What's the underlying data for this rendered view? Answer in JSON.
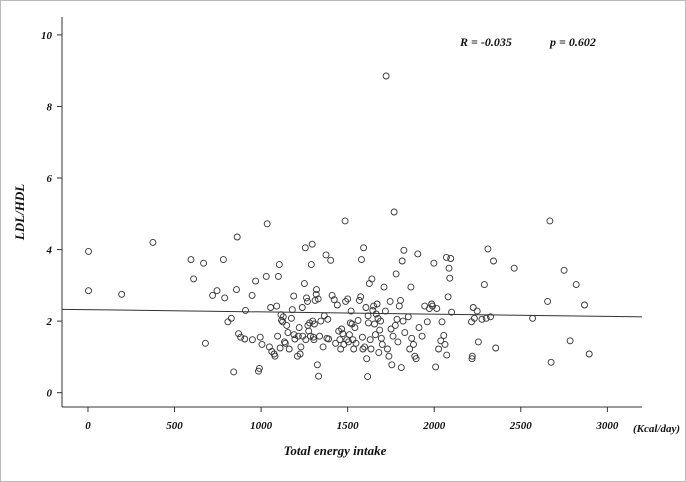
{
  "chart_data": {
    "type": "scatter",
    "xlabel": "Total energy intake",
    "ylabel": "LDL/HDL",
    "x_unit_label": "(Kcal/day)",
    "xlim": [
      -150,
      3200
    ],
    "ylim": [
      -0.4,
      10.5
    ],
    "x_ticks": [
      0,
      500,
      1000,
      1500,
      2000,
      2500,
      3000
    ],
    "y_ticks": [
      0,
      2,
      4,
      6,
      8,
      10
    ],
    "x_tick_labels": [
      "0",
      "500",
      "1000",
      "1500",
      "2000",
      "2500",
      "3000"
    ],
    "y_tick_labels": [
      "0",
      "2",
      "4",
      "6",
      "8",
      "10"
    ],
    "grid": false,
    "legend": "none",
    "annotations": {
      "r_label": "R = -0.035",
      "p_label": "p = 0.602"
    },
    "fit_line": {
      "x": [
        -150,
        3200
      ],
      "y": [
        2.33,
        2.12
      ]
    },
    "colors": {
      "points": "#333333",
      "fit_line": "#333333",
      "axes": "#333333",
      "frame": "#bbbbbb",
      "background": "#ffffff"
    },
    "points": [
      [
        3,
        3.95
      ],
      [
        3,
        2.85
      ],
      [
        195,
        2.75
      ],
      [
        375,
        4.2
      ],
      [
        595,
        3.72
      ],
      [
        610,
        3.18
      ],
      [
        668,
        3.62
      ],
      [
        678,
        1.38
      ],
      [
        720,
        2.72
      ],
      [
        745,
        2.85
      ],
      [
        782,
        3.72
      ],
      [
        790,
        2.65
      ],
      [
        808,
        1.98
      ],
      [
        828,
        2.08
      ],
      [
        842,
        0.58
      ],
      [
        858,
        2.88
      ],
      [
        862,
        4.35
      ],
      [
        870,
        1.65
      ],
      [
        882,
        1.55
      ],
      [
        905,
        1.5
      ],
      [
        910,
        2.3
      ],
      [
        948,
        2.72
      ],
      [
        950,
        1.48
      ],
      [
        968,
        3.12
      ],
      [
        985,
        0.6
      ],
      [
        990,
        0.68
      ],
      [
        995,
        1.55
      ],
      [
        1005,
        1.35
      ],
      [
        1030,
        3.25
      ],
      [
        1035,
        4.72
      ],
      [
        1048,
        1.28
      ],
      [
        1055,
        2.38
      ],
      [
        1062,
        1.15
      ],
      [
        1075,
        1.08
      ],
      [
        1080,
        1.02
      ],
      [
        1090,
        2.42
      ],
      [
        1095,
        1.58
      ],
      [
        1100,
        3.25
      ],
      [
        1105,
        3.58
      ],
      [
        1110,
        1.25
      ],
      [
        1115,
        2.18
      ],
      [
        1118,
        2.02
      ],
      [
        1125,
        1.98
      ],
      [
        1128,
        2.12
      ],
      [
        1135,
        1.42
      ],
      [
        1140,
        1.38
      ],
      [
        1148,
        1.88
      ],
      [
        1155,
        1.68
      ],
      [
        1162,
        1.22
      ],
      [
        1175,
        2.08
      ],
      [
        1180,
        2.32
      ],
      [
        1188,
        2.7
      ],
      [
        1190,
        1.62
      ],
      [
        1195,
        1.5
      ],
      [
        1210,
        1.02
      ],
      [
        1215,
        1.58
      ],
      [
        1220,
        1.82
      ],
      [
        1225,
        1.08
      ],
      [
        1230,
        1.28
      ],
      [
        1238,
        2.38
      ],
      [
        1240,
        1.58
      ],
      [
        1250,
        3.05
      ],
      [
        1255,
        4.05
      ],
      [
        1258,
        1.48
      ],
      [
        1262,
        2.65
      ],
      [
        1268,
        2.55
      ],
      [
        1270,
        1.88
      ],
      [
        1275,
        1.72
      ],
      [
        1280,
        1.95
      ],
      [
        1285,
        1.58
      ],
      [
        1290,
        3.58
      ],
      [
        1295,
        4.15
      ],
      [
        1298,
        2.0
      ],
      [
        1302,
        1.55
      ],
      [
        1305,
        1.48
      ],
      [
        1308,
        1.92
      ],
      [
        1312,
        2.58
      ],
      [
        1318,
        2.75
      ],
      [
        1320,
        2.88
      ],
      [
        1325,
        0.78
      ],
      [
        1330,
        2.62
      ],
      [
        1332,
        0.46
      ],
      [
        1338,
        1.58
      ],
      [
        1345,
        2.0
      ],
      [
        1358,
        1.28
      ],
      [
        1365,
        2.15
      ],
      [
        1375,
        3.85
      ],
      [
        1380,
        1.52
      ],
      [
        1385,
        2.05
      ],
      [
        1390,
        1.5
      ],
      [
        1402,
        3.7
      ],
      [
        1410,
        2.72
      ],
      [
        1422,
        2.6
      ],
      [
        1430,
        1.38
      ],
      [
        1440,
        2.45
      ],
      [
        1448,
        1.72
      ],
      [
        1455,
        1.48
      ],
      [
        1460,
        1.22
      ],
      [
        1465,
        1.78
      ],
      [
        1472,
        1.65
      ],
      [
        1478,
        1.35
      ],
      [
        1485,
        4.8
      ],
      [
        1488,
        2.55
      ],
      [
        1495,
        1.48
      ],
      [
        1500,
        2.62
      ],
      [
        1505,
        1.42
      ],
      [
        1510,
        1.62
      ],
      [
        1515,
        1.95
      ],
      [
        1520,
        2.28
      ],
      [
        1525,
        1.92
      ],
      [
        1530,
        1.48
      ],
      [
        1535,
        1.22
      ],
      [
        1542,
        1.82
      ],
      [
        1548,
        1.38
      ],
      [
        1560,
        2.02
      ],
      [
        1568,
        2.58
      ],
      [
        1575,
        2.68
      ],
      [
        1580,
        3.72
      ],
      [
        1585,
        1.55
      ],
      [
        1588,
        1.22
      ],
      [
        1592,
        4.05
      ],
      [
        1598,
        1.28
      ],
      [
        1605,
        2.38
      ],
      [
        1610,
        0.95
      ],
      [
        1615,
        0.45
      ],
      [
        1618,
        2.15
      ],
      [
        1620,
        1.95
      ],
      [
        1625,
        3.05
      ],
      [
        1630,
        1.48
      ],
      [
        1635,
        1.22
      ],
      [
        1640,
        3.18
      ],
      [
        1645,
        2.3
      ],
      [
        1650,
        2.42
      ],
      [
        1655,
        1.92
      ],
      [
        1660,
        1.62
      ],
      [
        1665,
        2.2
      ],
      [
        1670,
        2.48
      ],
      [
        1675,
        2.08
      ],
      [
        1680,
        1.12
      ],
      [
        1685,
        1.75
      ],
      [
        1690,
        2.0
      ],
      [
        1695,
        1.52
      ],
      [
        1700,
        1.35
      ],
      [
        1710,
        2.95
      ],
      [
        1718,
        2.28
      ],
      [
        1722,
        8.85
      ],
      [
        1730,
        1.22
      ],
      [
        1738,
        1.02
      ],
      [
        1745,
        2.55
      ],
      [
        1750,
        1.78
      ],
      [
        1755,
        0.78
      ],
      [
        1762,
        1.58
      ],
      [
        1768,
        5.05
      ],
      [
        1775,
        1.88
      ],
      [
        1780,
        3.32
      ],
      [
        1785,
        2.05
      ],
      [
        1790,
        1.42
      ],
      [
        1798,
        2.42
      ],
      [
        1805,
        2.58
      ],
      [
        1810,
        0.7
      ],
      [
        1815,
        3.68
      ],
      [
        1820,
        2.0
      ],
      [
        1825,
        3.98
      ],
      [
        1830,
        1.68
      ],
      [
        1850,
        2.12
      ],
      [
        1858,
        1.22
      ],
      [
        1865,
        2.95
      ],
      [
        1870,
        1.52
      ],
      [
        1880,
        1.35
      ],
      [
        1888,
        1.02
      ],
      [
        1895,
        0.95
      ],
      [
        1905,
        3.88
      ],
      [
        1912,
        1.82
      ],
      [
        1930,
        1.58
      ],
      [
        1945,
        2.42
      ],
      [
        1960,
        1.98
      ],
      [
        1972,
        2.35
      ],
      [
        1985,
        2.48
      ],
      [
        1990,
        2.42
      ],
      [
        1998,
        3.62
      ],
      [
        2008,
        0.72
      ],
      [
        2015,
        2.35
      ],
      [
        2025,
        1.22
      ],
      [
        2038,
        1.45
      ],
      [
        2045,
        1.98
      ],
      [
        2055,
        1.6
      ],
      [
        2062,
        1.35
      ],
      [
        2070,
        3.78
      ],
      [
        2072,
        1.05
      ],
      [
        2080,
        2.68
      ],
      [
        2085,
        3.48
      ],
      [
        2090,
        3.2
      ],
      [
        2095,
        3.75
      ],
      [
        2100,
        2.25
      ],
      [
        2215,
        1.98
      ],
      [
        2218,
        0.95
      ],
      [
        2220,
        1.02
      ],
      [
        2225,
        2.38
      ],
      [
        2232,
        2.08
      ],
      [
        2248,
        2.28
      ],
      [
        2255,
        1.42
      ],
      [
        2275,
        2.05
      ],
      [
        2290,
        3.02
      ],
      [
        2300,
        2.08
      ],
      [
        2310,
        4.02
      ],
      [
        2325,
        2.12
      ],
      [
        2342,
        3.68
      ],
      [
        2355,
        1.25
      ],
      [
        2462,
        3.48
      ],
      [
        2568,
        2.08
      ],
      [
        2655,
        2.55
      ],
      [
        2668,
        4.8
      ],
      [
        2675,
        0.85
      ],
      [
        2750,
        3.42
      ],
      [
        2785,
        1.45
      ],
      [
        2820,
        3.02
      ],
      [
        2868,
        2.45
      ],
      [
        2895,
        1.08
      ]
    ]
  }
}
